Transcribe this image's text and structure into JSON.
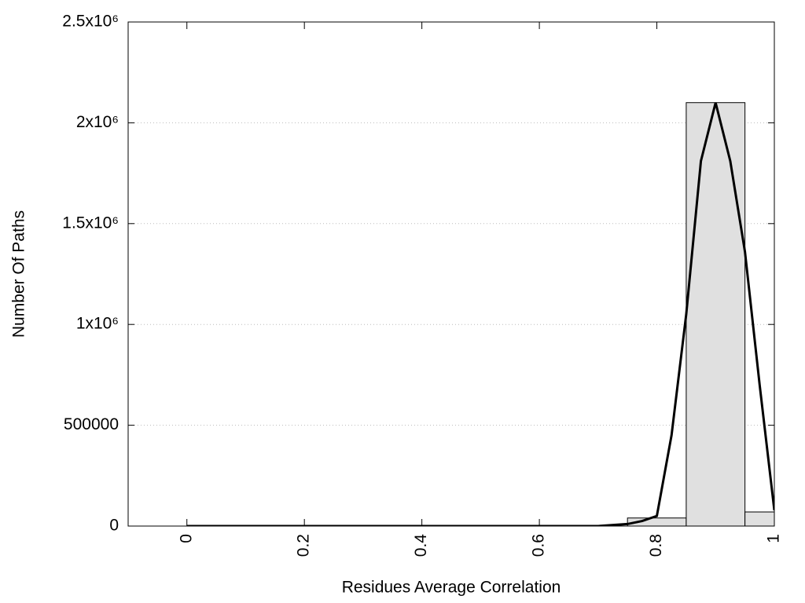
{
  "chart_data": {
    "type": "histogram",
    "xlabel": "Residues Average Correlation",
    "ylabel": "Number Of Paths",
    "bins": [
      0.75,
      0.85,
      0.95,
      1.05
    ],
    "counts": [
      40000,
      2100000,
      70000
    ],
    "color": "#e0e0e0",
    "overlay": {
      "type": "line",
      "color": "#000000",
      "x": [
        0,
        0.7,
        0.75,
        0.775,
        0.8,
        0.825,
        0.85,
        0.875,
        0.9,
        0.925,
        0.95,
        0.975,
        1
      ],
      "values": [
        0,
        0,
        10000,
        25000,
        50000,
        450000,
        1050000,
        1810000,
        2100000,
        1810000,
        1360000,
        700000,
        78000
      ]
    },
    "xlim": [
      -0.1,
      1
    ],
    "ylim": [
      0,
      2500000
    ],
    "xticks": [
      0,
      0.2,
      0.4,
      0.6,
      0.8,
      1
    ],
    "yticks": [
      0,
      500000,
      {
        "value": 1000000,
        "label": "1x10⁶"
      },
      {
        "value": 1500000,
        "label": "1.5x10⁶"
      },
      {
        "value": 2000000,
        "label": "2x10⁶"
      },
      {
        "value": 2500000,
        "label": "2.5x10⁶"
      }
    ],
    "grid": true
  }
}
